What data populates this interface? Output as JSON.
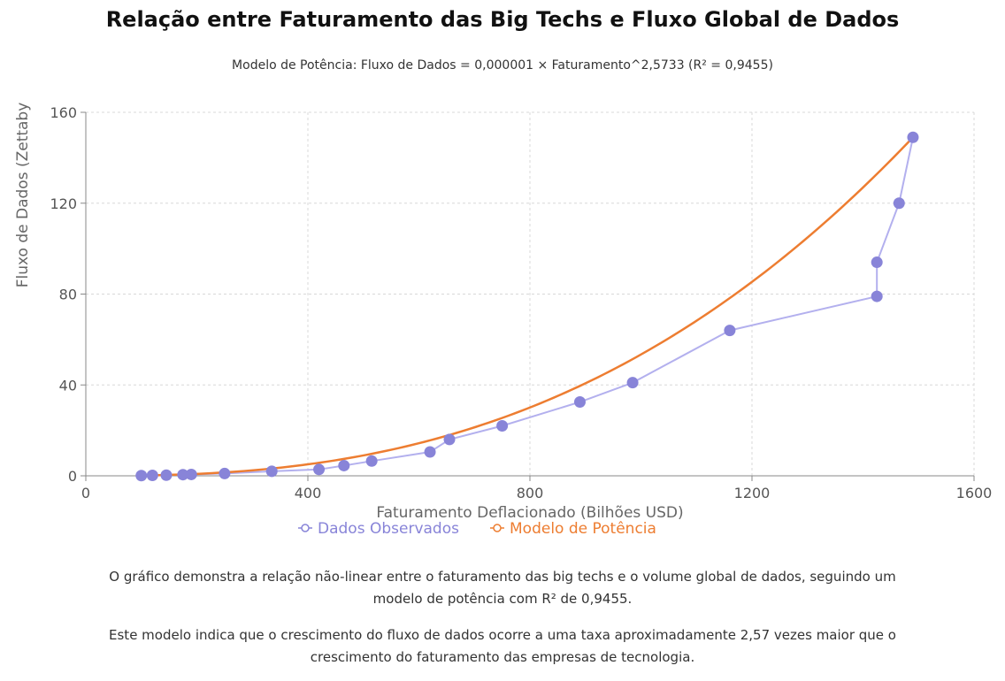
{
  "title": "Relação entre Faturamento das Big Techs e Fluxo Global de Dados",
  "subtitle": "Modelo de Potência: Fluxo de Dados = 0,000001 × Faturamento^2,5733 (R² = 0,9455)",
  "description": [
    "O gráfico demonstra a relação não-linear entre o faturamento das big techs e o volume global de dados, seguindo um modelo de potência com R² de 0,9455.",
    "Este modelo indica que o crescimento do fluxo de dados ocorre a uma taxa aproximadamente 2,57 vezes maior que o crescimento do faturamento das empresas de tecnologia."
  ],
  "chart_data": {
    "type": "scatter",
    "xlabel": "Faturamento Deflacionado (Bilhões USD)",
    "ylabel": "Fluxo de Dados (Zettaby",
    "xlim": [
      0,
      1600
    ],
    "ylim": [
      0,
      160
    ],
    "x_ticks": [
      0,
      400,
      800,
      1200,
      1600
    ],
    "y_ticks": [
      0,
      40,
      80,
      120,
      160
    ],
    "grid": true,
    "legend_position": "bottom",
    "series": [
      {
        "name": "Dados Observados",
        "color": "#8884d8",
        "style": "line-with-markers",
        "points": [
          [
            100,
            0.1
          ],
          [
            120,
            0.2
          ],
          [
            145,
            0.3
          ],
          [
            175,
            0.5
          ],
          [
            190,
            0.6
          ],
          [
            250,
            1.0
          ],
          [
            335,
            2.0
          ],
          [
            420,
            2.8
          ],
          [
            465,
            4.5
          ],
          [
            515,
            6.5
          ],
          [
            620,
            10.5
          ],
          [
            655,
            16.0
          ],
          [
            750,
            22.0
          ],
          [
            890,
            32.5
          ],
          [
            985,
            41.0
          ],
          [
            1160,
            64.0
          ],
          [
            1425,
            79.0
          ],
          [
            1425,
            94.0
          ],
          [
            1465,
            120.0
          ],
          [
            1490,
            149.0
          ]
        ]
      },
      {
        "name": "Modelo de Potência",
        "color": "#ed7d31",
        "style": "line",
        "model": {
          "coefficient": 1e-06,
          "exponent": 2.5733,
          "r2": 0.9455
        },
        "x_range": [
          100,
          1490
        ]
      }
    ]
  }
}
